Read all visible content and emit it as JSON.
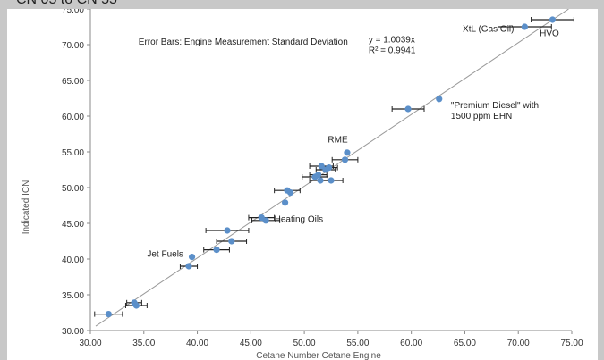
{
  "caption_fragment": "CN 05 to CN 55",
  "chart_data": {
    "type": "scatter",
    "title": "",
    "xlabel": "Cetane Number Cetane Engine",
    "ylabel": "Indicated ICN",
    "xlim": [
      30,
      75
    ],
    "ylim": [
      30,
      75
    ],
    "x_ticks": [
      "30.00",
      "35.00",
      "40.00",
      "45.00",
      "50.00",
      "55.00",
      "60.00",
      "65.00",
      "70.00",
      "75.00"
    ],
    "y_ticks": [
      "30.00",
      "35.00",
      "40.00",
      "45.00",
      "50.00",
      "55.00",
      "60.00",
      "65.00",
      "70.00",
      "75.00"
    ],
    "grid": false,
    "trendline": {
      "slope": 1.0039
    },
    "points": [
      {
        "x": 31.7,
        "y": 32.3,
        "xerr": 1.3
      },
      {
        "x": 34.1,
        "y": 33.9,
        "xerr": 0.7
      },
      {
        "x": 34.3,
        "y": 33.5,
        "xerr": 1.0
      },
      {
        "x": 39.2,
        "y": 39.0,
        "xerr": 0.8
      },
      {
        "x": 39.5,
        "y": 40.3,
        "xerr": 0.0
      },
      {
        "x": 41.8,
        "y": 41.3,
        "xerr": 1.2
      },
      {
        "x": 42.8,
        "y": 44.0,
        "xerr": 2.0
      },
      {
        "x": 43.2,
        "y": 42.5,
        "xerr": 1.4
      },
      {
        "x": 46.0,
        "y": 45.8,
        "xerr": 1.2
      },
      {
        "x": 46.4,
        "y": 45.4,
        "xerr": 1.3
      },
      {
        "x": 48.2,
        "y": 47.9,
        "xerr": 0.0
      },
      {
        "x": 48.4,
        "y": 49.6,
        "xerr": 1.2
      },
      {
        "x": 48.7,
        "y": 49.3,
        "xerr": 0.0
      },
      {
        "x": 51.0,
        "y": 51.5,
        "xerr": 1.2
      },
      {
        "x": 51.3,
        "y": 51.8,
        "xerr": 0.8
      },
      {
        "x": 51.5,
        "y": 51.0,
        "xerr": 1.0
      },
      {
        "x": 51.6,
        "y": 53.0,
        "xerr": 1.1
      },
      {
        "x": 52.0,
        "y": 52.5,
        "xerr": 0.9
      },
      {
        "x": 52.3,
        "y": 52.8,
        "xerr": 0.8
      },
      {
        "x": 52.5,
        "y": 51.0,
        "xerr": 1.1
      },
      {
        "x": 53.8,
        "y": 53.9,
        "xerr": 1.2
      },
      {
        "x": 54.0,
        "y": 54.9,
        "xerr": 0.0
      },
      {
        "x": 59.7,
        "y": 61.0,
        "xerr": 1.5
      },
      {
        "x": 62.6,
        "y": 62.4,
        "xerr": 0.0
      },
      {
        "x": 70.6,
        "y": 72.5,
        "xerr": 2.5
      },
      {
        "x": 73.2,
        "y": 73.5,
        "xerr": 2.0
      }
    ],
    "annotations": [
      {
        "text": "Error Bars: Engine Measurement Standard Deviation",
        "x": 34.5,
        "y": 70.0,
        "anchor": "start"
      },
      {
        "text": "y = 1.0039x",
        "x": 56.0,
        "y": 70.3,
        "anchor": "start"
      },
      {
        "text": "R² = 0.9941",
        "x": 56.0,
        "y": 68.8,
        "anchor": "start"
      },
      {
        "text": "XtL (Gas Oil)",
        "x": 64.8,
        "y": 71.8,
        "anchor": "start"
      },
      {
        "text": "HVO",
        "x": 72.0,
        "y": 71.2,
        "anchor": "start"
      },
      {
        "text": "\"Premium Diesel\" with",
        "x": 63.7,
        "y": 61.1,
        "anchor": "start"
      },
      {
        "text": "1500 ppm EHN",
        "x": 63.7,
        "y": 59.6,
        "anchor": "start"
      },
      {
        "text": "RME",
        "x": 52.2,
        "y": 56.3,
        "anchor": "start"
      },
      {
        "text": "Heating Oils",
        "x": 47.2,
        "y": 45.2,
        "anchor": "start"
      },
      {
        "text": "Jet Fuels",
        "x": 35.3,
        "y": 40.3,
        "anchor": "start"
      }
    ],
    "colors": {
      "point": "#5b8fc9",
      "errorbar": "#222222",
      "trendline": "#9a9a9a"
    }
  }
}
